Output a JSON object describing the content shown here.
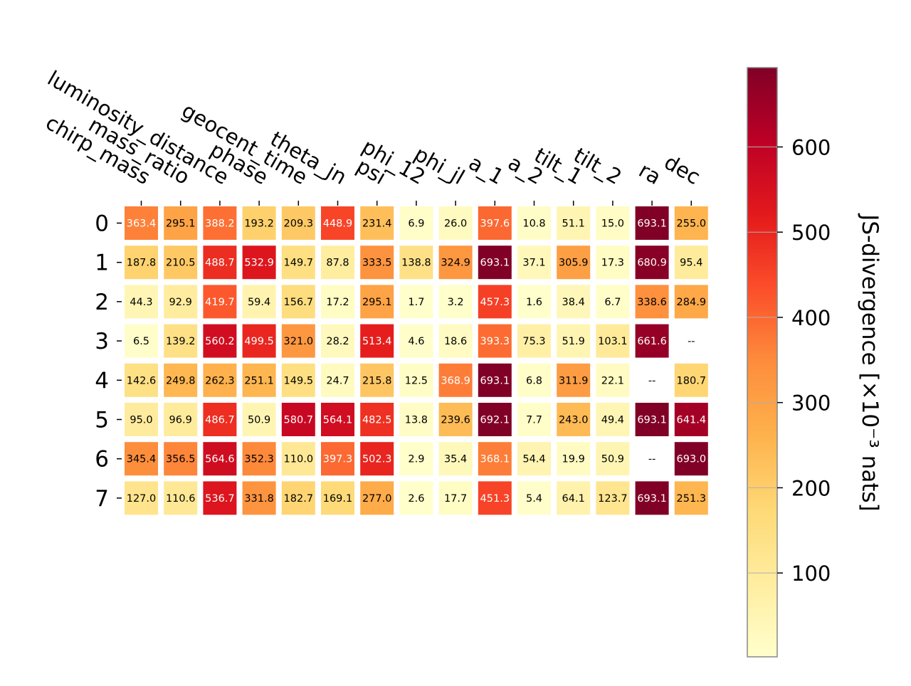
{
  "chart_data": {
    "type": "heatmap",
    "columns": [
      "chirp_mass",
      "mass_ratio",
      "luminosity_distance",
      "phase",
      "geocent_time",
      "theta_jn",
      "psi",
      "phi_12",
      "phi_jl",
      "a_1",
      "a_2",
      "tilt_1",
      "tilt_2",
      "ra",
      "dec"
    ],
    "rows": [
      "0",
      "1",
      "2",
      "3",
      "4",
      "5",
      "6",
      "7"
    ],
    "values": [
      [
        363.4,
        295.1,
        388.2,
        193.2,
        209.3,
        448.9,
        231.4,
        6.9,
        26.0,
        397.6,
        10.8,
        51.1,
        15.0,
        693.1,
        255.0
      ],
      [
        187.8,
        210.5,
        488.7,
        532.9,
        149.7,
        87.8,
        333.5,
        138.8,
        324.9,
        693.1,
        37.1,
        305.9,
        17.3,
        680.9,
        95.4
      ],
      [
        44.3,
        92.9,
        419.7,
        59.4,
        156.7,
        17.2,
        295.1,
        1.7,
        3.2,
        457.3,
        1.6,
        38.4,
        6.7,
        338.6,
        284.9
      ],
      [
        6.5,
        139.2,
        560.2,
        499.5,
        321.0,
        28.2,
        513.4,
        4.6,
        18.6,
        393.3,
        75.3,
        51.9,
        103.1,
        661.6,
        null
      ],
      [
        142.6,
        249.8,
        262.3,
        251.1,
        149.5,
        24.7,
        215.8,
        12.5,
        368.9,
        693.1,
        6.8,
        311.9,
        22.1,
        null,
        180.7
      ],
      [
        95.0,
        96.9,
        486.7,
        50.9,
        580.7,
        564.1,
        482.5,
        13.8,
        239.6,
        692.1,
        7.7,
        243.0,
        49.4,
        693.1,
        641.4
      ],
      [
        345.4,
        356.5,
        564.6,
        352.3,
        110.0,
        397.3,
        502.3,
        2.9,
        35.4,
        368.1,
        54.4,
        19.9,
        50.9,
        null,
        693.0
      ],
      [
        127.0,
        110.6,
        536.7,
        331.8,
        182.7,
        169.1,
        277.0,
        2.6,
        17.7,
        451.3,
        5.4,
        64.1,
        123.7,
        693.1,
        251.3
      ]
    ],
    "missing_label": "--",
    "colormap": "YlOrRd",
    "colorbar": {
      "label": "JS-divergence [×10⁻³ nats]",
      "ticks": [
        100,
        200,
        300,
        400,
        500,
        600
      ],
      "range": [
        1.6,
        693.1
      ]
    },
    "grid": false
  }
}
